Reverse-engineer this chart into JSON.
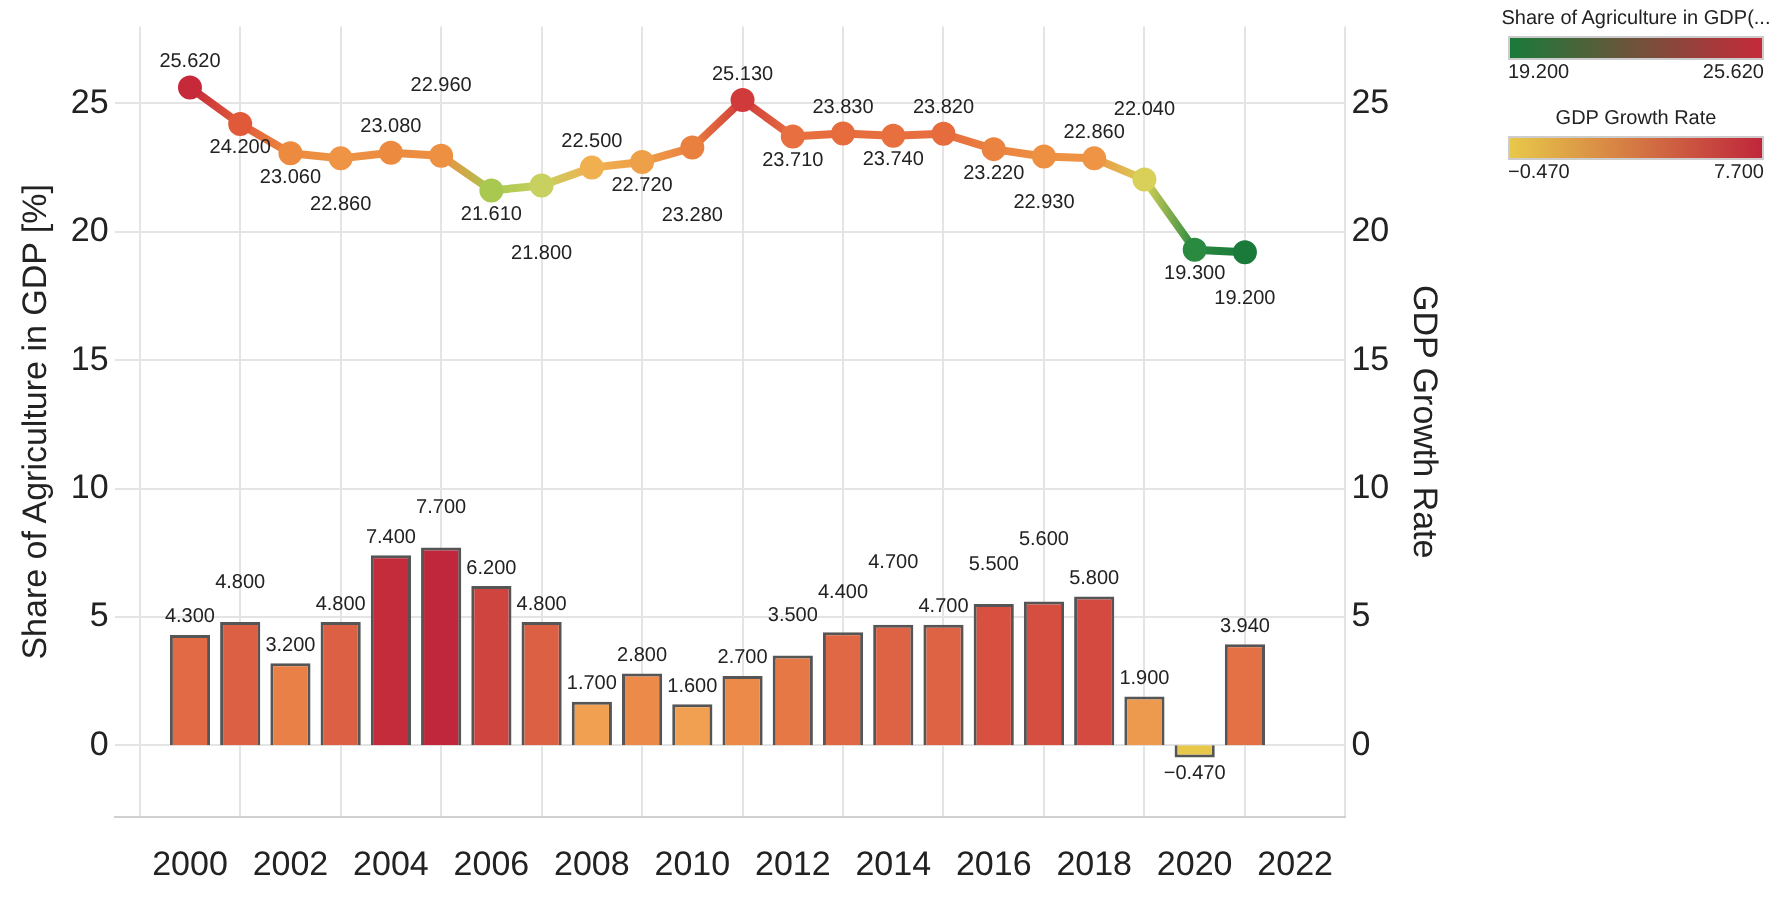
{
  "chart_data": {
    "type": "bar",
    "ylabel": "Share of Agriculture in GDP [%]",
    "y2label": "GDP Growth Rate",
    "x": [
      2000,
      2001,
      2002,
      2003,
      2004,
      2005,
      2006,
      2007,
      2008,
      2009,
      2010,
      2011,
      2012,
      2013,
      2014,
      2015,
      2016,
      2017,
      2018,
      2019,
      2020,
      2021
    ],
    "xlim": [
      1998.5,
      2023
    ],
    "xticks": [
      2000,
      2002,
      2004,
      2006,
      2008,
      2010,
      2012,
      2014,
      2016,
      2018,
      2020,
      2022
    ],
    "ylim": [
      -2.8,
      28
    ],
    "yticks": [
      0,
      5,
      10,
      15,
      20,
      25
    ],
    "y2lim": [
      -2.8,
      28
    ],
    "y2ticks": [
      0,
      5,
      10,
      15,
      20,
      25
    ],
    "grid": true,
    "legend": "top right",
    "marker": "circle",
    "series": [
      {
        "name": "Share of Agriculture in GDP(...",
        "type": "line",
        "values": [
          25.62,
          24.2,
          23.06,
          22.86,
          23.08,
          22.96,
          21.61,
          21.8,
          22.5,
          22.72,
          23.28,
          25.13,
          23.71,
          23.83,
          23.74,
          23.82,
          23.22,
          22.93,
          22.86,
          22.04,
          19.3,
          19.2
        ],
        "value_labels": [
          "25.620",
          "24.200",
          "23.060",
          "22.860",
          "23.080",
          "22.960",
          "21.610",
          "21.800",
          "22.500",
          "22.720",
          "23.280",
          "25.130",
          "23.710",
          "23.830",
          "23.740",
          "23.820",
          "23.220",
          "22.930",
          "22.860",
          "22.040",
          "19.300",
          "19.200"
        ],
        "colors": [
          "#c62a3a",
          "#e05a3a",
          "#ec8a40",
          "#ee9444",
          "#ec8a40",
          "#ed9042",
          "#a8c850",
          "#c8d060",
          "#f0b050",
          "#eea048",
          "#ea8040",
          "#d03a3a",
          "#e87040",
          "#e66c3e",
          "#e8703f",
          "#e66c3e",
          "#ea8240",
          "#ed9042",
          "#ee9444",
          "#d8d058",
          "#2a8a40",
          "#1a7a3a"
        ]
      },
      {
        "name": "GDP Growth Rate",
        "axis": "y2",
        "values": [
          4.3,
          4.8,
          3.2,
          4.8,
          7.4,
          7.7,
          6.2,
          4.8,
          1.7,
          2.8,
          1.6,
          2.7,
          3.5,
          4.4,
          4.7,
          4.7,
          5.5,
          5.6,
          5.8,
          1.9,
          -0.47,
          3.94
        ],
        "value_labels": [
          "4.300",
          "4.800",
          "3.200",
          "4.800",
          "7.400",
          "7.700",
          "6.200",
          "4.800",
          "1.700",
          "2.800",
          "1.600",
          "2.700",
          "3.500",
          "4.400",
          "4.700",
          "4.700",
          "5.500",
          "5.600",
          "5.800",
          "1.900",
          "−0.470",
          "3.940"
        ],
        "colors": [
          "#e26a44",
          "#dc6044",
          "#e88048",
          "#dc6044",
          "#c42c3c",
          "#c0263c",
          "#d04440",
          "#dc6044",
          "#f0a050",
          "#ec8a4a",
          "#f0a050",
          "#ec8a4a",
          "#e67846",
          "#e06844",
          "#de6244",
          "#de6244",
          "#d85040",
          "#d64e40",
          "#d44a40",
          "#ee9a4e",
          "#e8c84a",
          "#e47046"
        ]
      }
    ]
  }
}
